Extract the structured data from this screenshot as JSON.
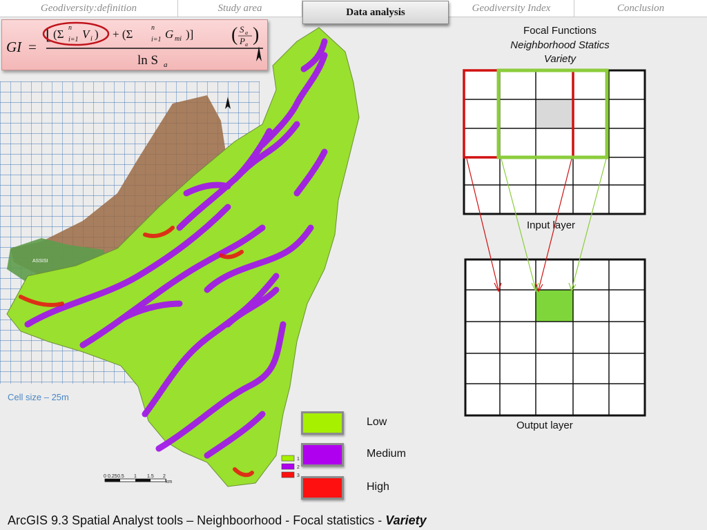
{
  "nav": {
    "tabs": [
      {
        "label": "Geodiversity:definition"
      },
      {
        "label": "Study area"
      },
      {
        "label": "Data analysis"
      },
      {
        "label": "Geodiversity Index"
      },
      {
        "label": "Conclusion"
      }
    ],
    "active_index": 2
  },
  "formula": {
    "lhs": "GI",
    "equals": "=",
    "sum_v": "(Σ",
    "sup_n1": "n",
    "sub_i1": "i=1",
    "v_i": "V",
    "v_sub": "i",
    "plus": "+ (Σ",
    "sup_n2": "n",
    "sub_i2": "i=1",
    "g_mi": "G",
    "g_sub": "mi",
    "close": ")]",
    "open_bracket": "[",
    "close_paren1": ")",
    "s_a": "S",
    "s_a_sub": "a",
    "p_a": "P",
    "p_a_sub": "a",
    "denominator": "ln S",
    "denominator_sub": "a",
    "highlight_color": "#c0141c"
  },
  "map": {
    "cell_size_label": "Cell size – 25m",
    "town_label": "ASSISI",
    "scalebar_ticks": [
      "0",
      "0.25",
      "0.5",
      "1",
      "1.5",
      "2"
    ],
    "scalebar_unit": "km",
    "mini_legend": [
      "1",
      "2",
      "3"
    ]
  },
  "legend": {
    "items": [
      {
        "label": "Low",
        "color": "#a6f000"
      },
      {
        "label": "Medium",
        "color": "#b000f0"
      },
      {
        "label": "High",
        "color": "#ff1010"
      }
    ]
  },
  "focal": {
    "title": "Focal Functions",
    "subtitle": "Neighborhood Statics",
    "operation": "Variety",
    "input_label": "Input layer",
    "output_label": "Output layer",
    "colors": {
      "red": "#d01010",
      "green": "#8ccc3c",
      "cell_green": "#7ed63a"
    }
  },
  "footer": {
    "text": "ArcGIS 9.3 Spatial Analyst tools – Neighboorhood - Focal statistics - ",
    "emphasis": "Variety"
  }
}
